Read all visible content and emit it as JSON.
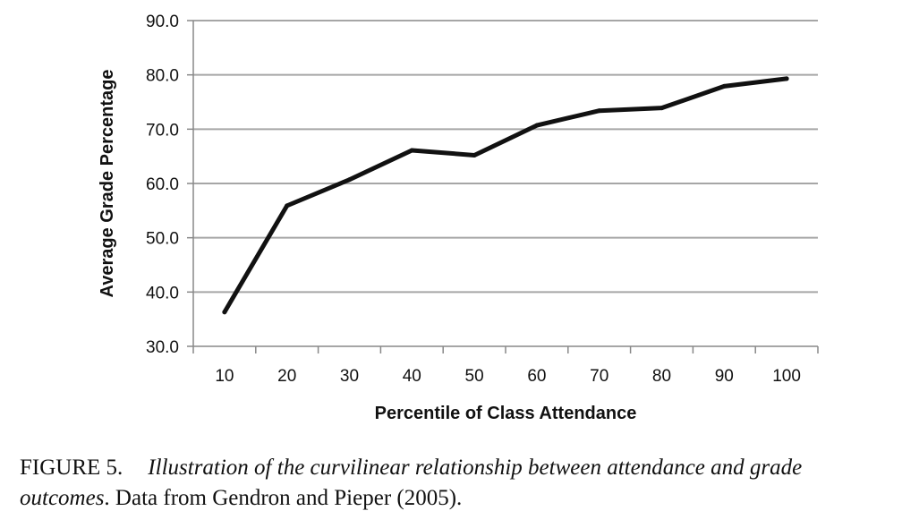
{
  "chart_data": {
    "type": "line",
    "categories": [
      "10",
      "20",
      "30",
      "40",
      "50",
      "60",
      "70",
      "80",
      "90",
      "100"
    ],
    "series": [
      {
        "values": [
          36.3,
          55.9,
          60.7,
          66.1,
          65.2,
          70.7,
          73.4,
          73.9,
          77.9,
          79.3
        ]
      }
    ],
    "yticks": [
      "30.0",
      "40.0",
      "50.0",
      "60.0",
      "70.0",
      "80.0",
      "90.0"
    ],
    "ylim": [
      30,
      90
    ],
    "xlabel": "Percentile of Class Attendance",
    "ylabel": "Average Grade Percentage",
    "grid": "horizontal",
    "line_color": "#111111",
    "grid_color": "#a6a6a6"
  },
  "caption": {
    "label": "FIGURE 5.",
    "italic_text": "Illustration of the curvilinear relationship between attendance and grade outcomes",
    "plain_text": ". Data from Gendron and Pieper (2005)."
  }
}
